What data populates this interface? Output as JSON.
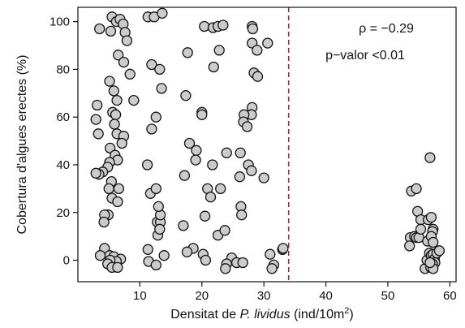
{
  "chart_data": {
    "type": "scatter",
    "title": "",
    "xlabel": {
      "prefix": "Densitat de ",
      "italic": "P. lividus",
      "suffix": " (ind/10m",
      "sup": "2",
      "close": ")"
    },
    "ylabel": "Cobertura d'algues erectes (%)",
    "xlim": [
      0,
      61
    ],
    "ylim": [
      -9,
      106
    ],
    "xticks": [
      10,
      20,
      30,
      40,
      50,
      60
    ],
    "yticks": [
      0,
      20,
      40,
      60,
      80,
      100
    ],
    "threshold_x": 34,
    "annotations": {
      "rho": "ρ = −0.29",
      "pvalue": "p−valor <0.01"
    },
    "colors": {
      "point_fill": "#cccccc",
      "point_edge": "#111111",
      "threshold": "#b2182b"
    },
    "points": [
      [
        3.5,
        97
      ],
      [
        5.3,
        96
      ],
      [
        5.5,
        102
      ],
      [
        6.2,
        100
      ],
      [
        6.8,
        101
      ],
      [
        7.3,
        99
      ],
      [
        7.6,
        95.5
      ],
      [
        7.9,
        92
      ],
      [
        6.5,
        86
      ],
      [
        7.4,
        83
      ],
      [
        8.4,
        78
      ],
      [
        5.1,
        75
      ],
      [
        5.8,
        71
      ],
      [
        6.3,
        67
      ],
      [
        9.0,
        67
      ],
      [
        3.1,
        65
      ],
      [
        2.9,
        59
      ],
      [
        3.3,
        53
      ],
      [
        5.6,
        62
      ],
      [
        6.1,
        61
      ],
      [
        5.9,
        57
      ],
      [
        6.3,
        53
      ],
      [
        7.4,
        52
      ],
      [
        7.1,
        49
      ],
      [
        5.2,
        47
      ],
      [
        6.0,
        44
      ],
      [
        6.4,
        42
      ],
      [
        5.1,
        41
      ],
      [
        4.8,
        39
      ],
      [
        4.0,
        37
      ],
      [
        3.4,
        36
      ],
      [
        2.9,
        36.5
      ],
      [
        5.4,
        33
      ],
      [
        6.6,
        30
      ],
      [
        5.0,
        30
      ],
      [
        5.5,
        26
      ],
      [
        6.4,
        24.5
      ],
      [
        4.9,
        19
      ],
      [
        4.3,
        19
      ],
      [
        4.2,
        16
      ],
      [
        4.3,
        5
      ],
      [
        5.1,
        2
      ],
      [
        3.6,
        2
      ],
      [
        5.8,
        1.5
      ],
      [
        6.9,
        0.5
      ],
      [
        6.2,
        -0.5
      ],
      [
        5.2,
        0
      ],
      [
        4.8,
        -1.5
      ],
      [
        5.5,
        -3
      ],
      [
        6.4,
        -3
      ],
      [
        11.3,
        102
      ],
      [
        12.3,
        102
      ],
      [
        13.6,
        103.5
      ],
      [
        11.9,
        82
      ],
      [
        13.2,
        80
      ],
      [
        13.5,
        72
      ],
      [
        12.6,
        60
      ],
      [
        11.9,
        55
      ],
      [
        11.2,
        40
      ],
      [
        11.7,
        28
      ],
      [
        12.6,
        30
      ],
      [
        12.8,
        16
      ],
      [
        13.3,
        16
      ],
      [
        13.3,
        19
      ],
      [
        12.9,
        10.5
      ],
      [
        13.2,
        13
      ],
      [
        13.0,
        22.5
      ],
      [
        11.3,
        4.5
      ],
      [
        11.4,
        -0.5
      ],
      [
        12.6,
        -2
      ],
      [
        13.9,
        2
      ],
      [
        17.7,
        87
      ],
      [
        17.4,
        69
      ],
      [
        20.0,
        62
      ],
      [
        20.0,
        61
      ],
      [
        18.0,
        49
      ],
      [
        19.1,
        46
      ],
      [
        19.0,
        42
      ],
      [
        17.2,
        35.5
      ],
      [
        21.7,
        40
      ],
      [
        20.9,
        30
      ],
      [
        21.4,
        26.5
      ],
      [
        20.5,
        18.5
      ],
      [
        17.0,
        14.5
      ],
      [
        18.6,
        5
      ],
      [
        17.6,
        3.5
      ],
      [
        20.2,
        2.5
      ],
      [
        20.6,
        0
      ],
      [
        20.4,
        98
      ],
      [
        21.8,
        97.5
      ],
      [
        22.6,
        98
      ],
      [
        23.4,
        98.5
      ],
      [
        22.8,
        88
      ],
      [
        21.9,
        81
      ],
      [
        23.0,
        30
      ],
      [
        24.0,
        45
      ],
      [
        22.6,
        10.5
      ],
      [
        23.7,
        12.5
      ],
      [
        24.8,
        1
      ],
      [
        24.0,
        -1.5
      ],
      [
        23.8,
        -3.5
      ],
      [
        25.6,
        -1
      ],
      [
        26.6,
        -1
      ],
      [
        28.1,
        98
      ],
      [
        28.2,
        97
      ],
      [
        28.1,
        91
      ],
      [
        28.9,
        88
      ],
      [
        30.6,
        91
      ],
      [
        28.4,
        78.5
      ],
      [
        29.0,
        77
      ],
      [
        28.1,
        64
      ],
      [
        28.0,
        61
      ],
      [
        26.8,
        61
      ],
      [
        26.7,
        58
      ],
      [
        27.3,
        56
      ],
      [
        26.2,
        45
      ],
      [
        27.5,
        40
      ],
      [
        28.0,
        37.5
      ],
      [
        26.1,
        35
      ],
      [
        26.3,
        22.5
      ],
      [
        26.4,
        19
      ],
      [
        30.0,
        34.5
      ],
      [
        31.0,
        2.5
      ],
      [
        31.6,
        -2
      ],
      [
        31.3,
        -3.5
      ],
      [
        33.0,
        4.5
      ],
      [
        33.1,
        5
      ],
      [
        53.8,
        29
      ],
      [
        54.6,
        30
      ],
      [
        53.6,
        9.5
      ],
      [
        54.3,
        10
      ],
      [
        54.6,
        9.5
      ],
      [
        55.0,
        9.5
      ],
      [
        53.5,
        6
      ],
      [
        54.8,
        20.5
      ],
      [
        55.3,
        17
      ],
      [
        55.3,
        13
      ],
      [
        56.0,
        -3.5
      ],
      [
        56.3,
        0
      ],
      [
        56.4,
        8
      ],
      [
        56.5,
        17
      ],
      [
        56.8,
        43
      ],
      [
        57.0,
        18
      ],
      [
        57.3,
        13
      ],
      [
        57.2,
        12
      ],
      [
        57.0,
        10
      ],
      [
        57.3,
        7.5
      ],
      [
        56.7,
        3
      ],
      [
        57.0,
        2
      ],
      [
        57.3,
        2.5
      ],
      [
        57.5,
        0.5
      ],
      [
        57.9,
        3
      ],
      [
        58.3,
        4
      ],
      [
        57.6,
        -1
      ],
      [
        57.2,
        -1.5
      ],
      [
        56.9,
        -3
      ],
      [
        57.3,
        -3.5
      ],
      [
        56.8,
        -1
      ]
    ]
  }
}
